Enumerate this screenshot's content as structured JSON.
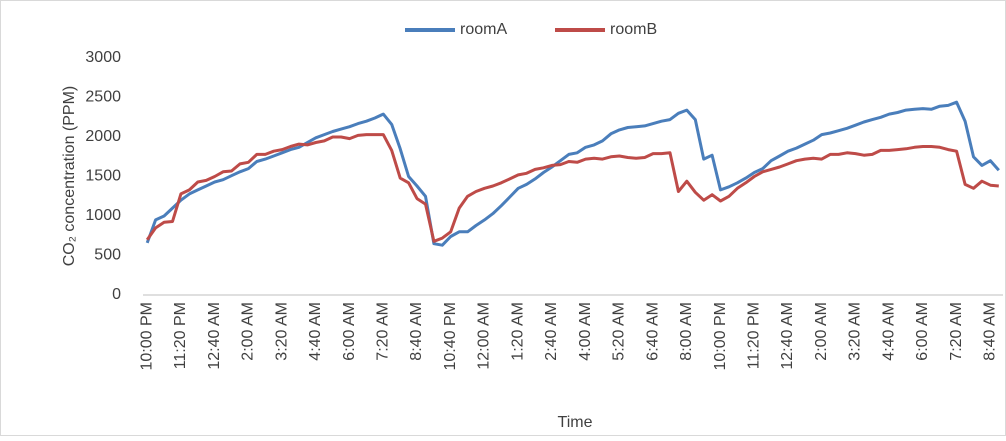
{
  "chart_data": {
    "type": "line",
    "x_label": "Time",
    "y_label": "CO₂ concentration (PPM)",
    "categories": [
      "10:00 PM",
      null,
      null,
      null,
      "11:20 PM",
      null,
      null,
      null,
      "12:40 AM",
      null,
      null,
      null,
      "2:00 AM",
      null,
      null,
      null,
      "3:20 AM",
      null,
      null,
      null,
      "4:40 AM",
      null,
      null,
      null,
      "6:00 AM",
      null,
      null,
      null,
      "7:20 AM",
      null,
      null,
      null,
      "8:40 AM",
      null,
      null,
      null,
      "10:40 PM",
      null,
      null,
      null,
      "12:00 AM",
      null,
      null,
      null,
      "1:20 AM",
      null,
      null,
      null,
      "2:40 AM",
      null,
      null,
      null,
      "4:00 AM",
      null,
      null,
      null,
      "5:20 AM",
      null,
      null,
      null,
      "6:40 AM",
      null,
      null,
      null,
      "8:00 AM",
      null,
      null,
      null,
      "10:00 PM",
      null,
      null,
      null,
      "11:20 PM",
      null,
      null,
      null,
      "12:40 AM",
      null,
      null,
      null,
      "2:00 AM",
      null,
      null,
      null,
      "3:20 AM",
      null,
      null,
      null,
      "4:40 AM",
      null,
      null,
      null,
      "6:00 AM",
      null,
      null,
      null,
      "7:20 AM",
      null,
      null,
      null,
      "8:40 AM",
      null
    ],
    "series": [
      {
        "name": "roomA",
        "color": "#4a7ebb",
        "values": [
          660,
          950,
          1000,
          1100,
          1200,
          1280,
          1330,
          1380,
          1430,
          1460,
          1510,
          1560,
          1600,
          1690,
          1720,
          1760,
          1800,
          1840,
          1870,
          1930,
          1990,
          2030,
          2070,
          2100,
          2130,
          2170,
          2200,
          2240,
          2290,
          2160,
          1850,
          1500,
          1380,
          1250,
          650,
          630,
          740,
          800,
          800,
          880,
          950,
          1030,
          1130,
          1240,
          1350,
          1400,
          1470,
          1550,
          1620,
          1700,
          1780,
          1800,
          1870,
          1900,
          1950,
          2040,
          2090,
          2120,
          2130,
          2140,
          2170,
          2200,
          2220,
          2300,
          2340,
          2220,
          1720,
          1770,
          1330,
          1370,
          1420,
          1480,
          1550,
          1600,
          1700,
          1760,
          1820,
          1860,
          1910,
          1960,
          2030,
          2050,
          2080,
          2110,
          2150,
          2190,
          2220,
          2250,
          2290,
          2310,
          2340,
          2350,
          2360,
          2350,
          2390,
          2400,
          2440,
          2200,
          1750,
          1640,
          1700,
          1580
        ]
      },
      {
        "name": "roomB",
        "color": "#be4b48",
        "values": [
          700,
          850,
          920,
          930,
          1280,
          1330,
          1430,
          1450,
          1500,
          1560,
          1570,
          1660,
          1680,
          1780,
          1780,
          1820,
          1840,
          1880,
          1910,
          1900,
          1930,
          1950,
          2000,
          2000,
          1980,
          2020,
          2030,
          2030,
          2030,
          1830,
          1480,
          1420,
          1220,
          1150,
          680,
          720,
          800,
          1100,
          1250,
          1310,
          1350,
          1380,
          1420,
          1470,
          1520,
          1540,
          1590,
          1610,
          1640,
          1650,
          1690,
          1680,
          1720,
          1730,
          1720,
          1750,
          1760,
          1740,
          1730,
          1740,
          1790,
          1790,
          1800,
          1310,
          1440,
          1300,
          1200,
          1270,
          1190,
          1250,
          1350,
          1420,
          1500,
          1560,
          1590,
          1620,
          1660,
          1700,
          1720,
          1730,
          1720,
          1780,
          1780,
          1800,
          1790,
          1770,
          1780,
          1830,
          1830,
          1840,
          1850,
          1870,
          1880,
          1880,
          1870,
          1840,
          1820,
          1400,
          1350,
          1440,
          1390,
          1380
        ]
      }
    ],
    "ylim": [
      0,
      3000
    ],
    "yticks": [
      0,
      500,
      1000,
      1500,
      2000,
      2500,
      3000
    ],
    "grid": false,
    "legend": "top"
  }
}
